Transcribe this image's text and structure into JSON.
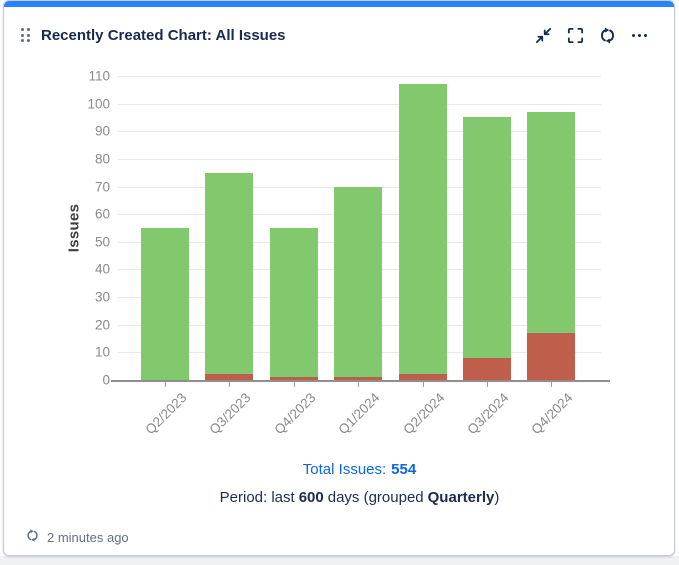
{
  "widget": {
    "title": "Recently Created Chart: All Issues",
    "updated": "2 minutes ago",
    "toolbar_icons": [
      "minimize-collapse-arrows",
      "fullscreen-corner-brackets",
      "refresh-circular-arrows",
      "more-ellipsis"
    ]
  },
  "footer": {
    "total_prefix": "Total Issues:",
    "total_value": "554",
    "period": {
      "p1": "Period: last",
      "b1": "600",
      "p2": "days (grouped",
      "b2": "Quarterly",
      "p3": ")"
    }
  },
  "colors": {
    "accent_bar": "#2684FF",
    "link_blue": "#0C66E4",
    "title_navy": "#172B4D",
    "bar_green": "#82C96D",
    "bar_red": "#BF5F4B"
  },
  "chart_data": {
    "type": "bar",
    "stacked": true,
    "categories": [
      "Q2/2023",
      "Q3/2023",
      "Q4/2023",
      "Q1/2024",
      "Q2/2024",
      "Q3/2024",
      "Q4/2024"
    ],
    "series": [
      {
        "name": "red (bottom segment)",
        "color": "#BF5F4B",
        "values": [
          0,
          2,
          1,
          1,
          2,
          8,
          17
        ]
      },
      {
        "name": "green (top segment)",
        "color": "#82C96D",
        "values": [
          55,
          73,
          54,
          69,
          105,
          87,
          80
        ]
      }
    ],
    "totals": [
      55,
      75,
      55,
      70,
      107,
      95,
      97
    ],
    "ylabel": "Issues",
    "xlabel": "",
    "ylim": [
      0,
      110
    ],
    "ytick_step": 10,
    "grid": true,
    "legend": "none"
  }
}
